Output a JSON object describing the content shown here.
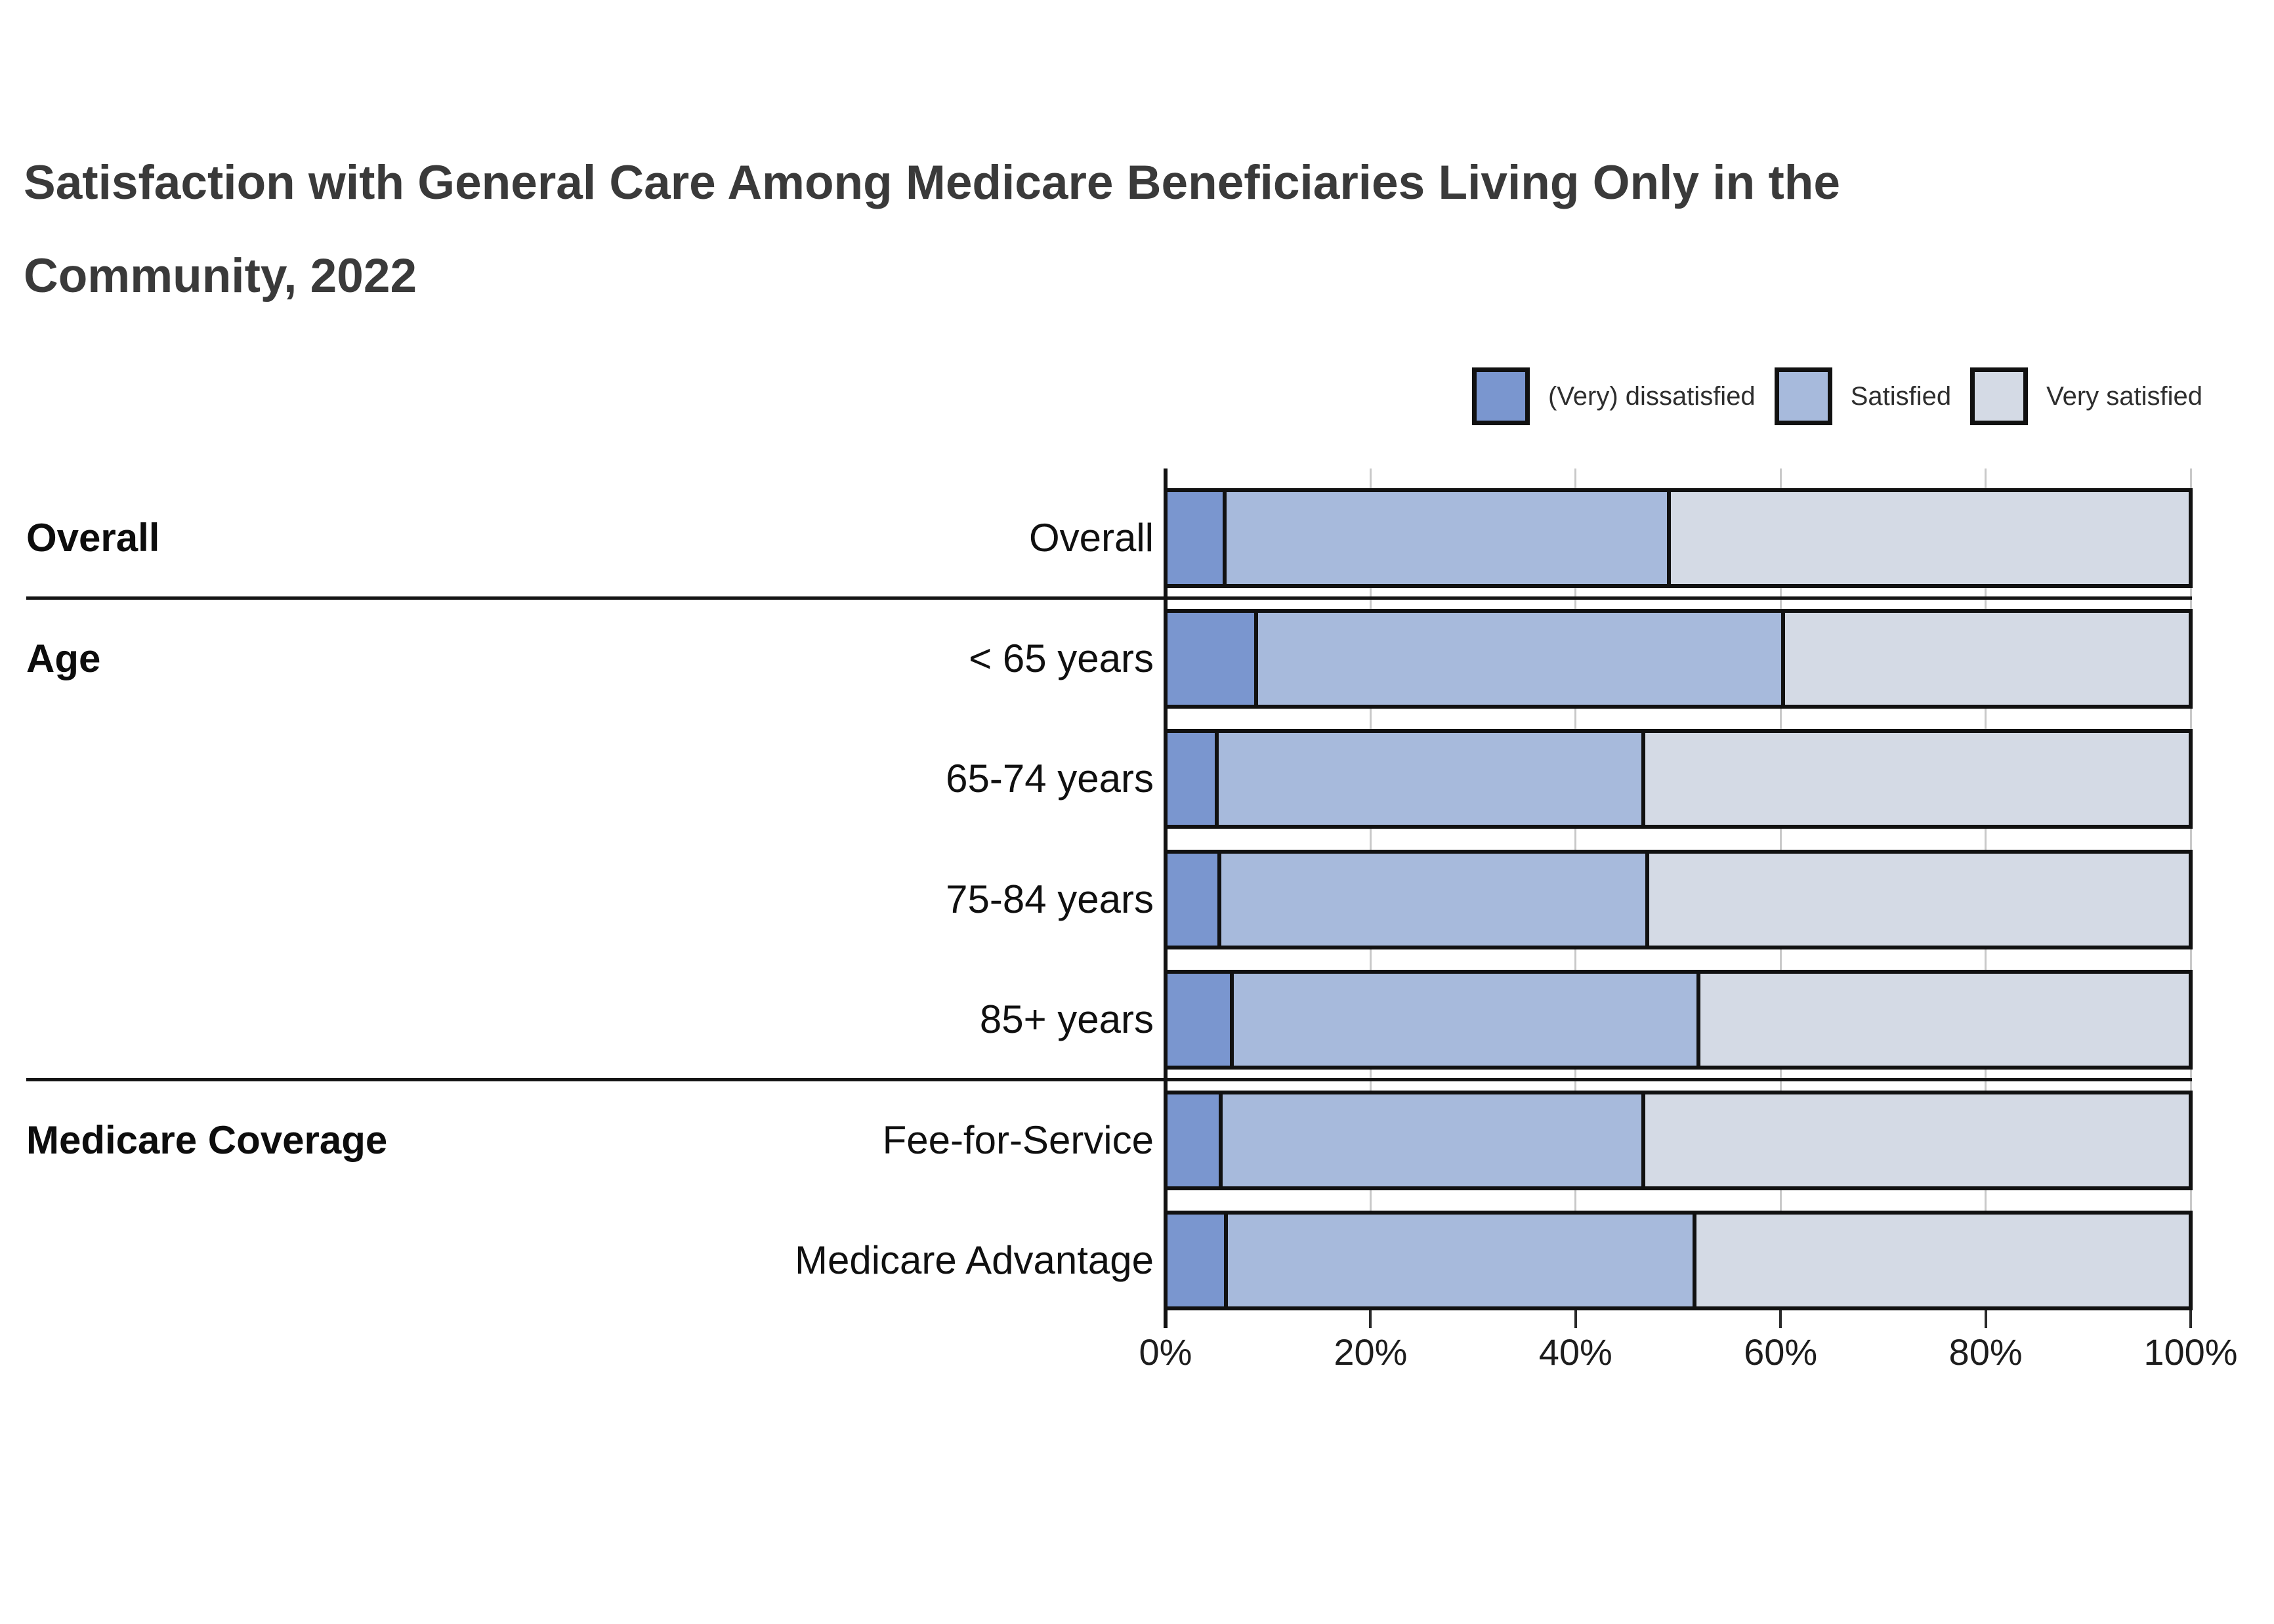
{
  "title": {
    "lines": [
      "Satisfaction with General Care Among Medicare Beneficiaries Living Only in the",
      "Community, 2022"
    ]
  },
  "legend": {
    "items": [
      {
        "label": "(Very) dissatisfied",
        "color": "#7A96CF"
      },
      {
        "label": "Satisfied",
        "color": "#A7BADC"
      },
      {
        "label": "Very satisfied",
        "color": "#D4DAE5"
      }
    ]
  },
  "chart_data": {
    "type": "bar",
    "orientation": "horizontal_stacked",
    "stack_order": [
      "(Very) dissatisfied",
      "Satisfied",
      "Very satisfied"
    ],
    "series_colors": {
      "(Very) dissatisfied": "#7A96CF",
      "Satisfied": "#A7BADC",
      "Very satisfied": "#D4DAE5"
    },
    "x_axis": {
      "min": 0,
      "max": 100,
      "tick_labels": [
        "0%",
        "20%",
        "40%",
        "60%",
        "80%",
        "100%"
      ],
      "grid": true
    },
    "groups": [
      {
        "label": "Overall",
        "rows": [
          {
            "label": "Overall",
            "values": [
              5.4,
              43.5,
              51.1
            ]
          }
        ]
      },
      {
        "label": "Age",
        "rows": [
          {
            "label": "< 65 years",
            "values": [
              8.5,
              51.6,
              39.9
            ]
          },
          {
            "label": "65-74 years",
            "values": [
              4.6,
              41.8,
              53.6
            ]
          },
          {
            "label": "75-84 years",
            "values": [
              4.9,
              41.9,
              53.2
            ]
          },
          {
            "label": "85+ years",
            "values": [
              6.1,
              45.7,
              48.2
            ]
          }
        ]
      },
      {
        "label": "Medicare Coverage",
        "rows": [
          {
            "label": "Fee-for-Service",
            "values": [
              5.0,
              41.4,
              53.6
            ]
          },
          {
            "label": "Medicare Advantage",
            "values": [
              5.5,
              45.9,
              48.6
            ]
          }
        ]
      }
    ],
    "colors": {
      "bar_border": "#111111",
      "grid_line": "#c9c9c9",
      "separator": "#141414",
      "title_text": "#3a3a3a",
      "label_text": "#101010"
    }
  }
}
